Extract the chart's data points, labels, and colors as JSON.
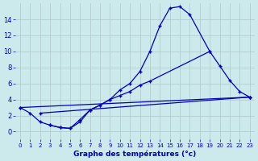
{
  "xlabel": "Graphe des températures (°c)",
  "bg_color": "#cce9eb",
  "grid_color": "#b0c8ca",
  "line_color": "#0000bb",
  "curve1_x": [
    3,
    4,
    5,
    6,
    7,
    8,
    9,
    10,
    11,
    12,
    13,
    14,
    15,
    16,
    17,
    19
  ],
  "curve1_y": [
    0.8,
    0.5,
    0.4,
    1.2,
    2.7,
    3.3,
    4.0,
    5.2,
    6.0,
    7.5,
    10.0,
    13.2,
    15.4,
    15.6,
    14.6,
    10.0
  ],
  "curve2_x": [
    0,
    1,
    2,
    3,
    4,
    5,
    6,
    7,
    8,
    9,
    10,
    11,
    12,
    13,
    19,
    20,
    21,
    22,
    23
  ],
  "curve2_y": [
    3.0,
    2.3,
    1.2,
    0.8,
    0.5,
    0.4,
    1.5,
    2.7,
    3.3,
    4.0,
    4.5,
    5.0,
    5.8,
    6.3,
    10.0,
    8.2,
    6.4,
    5.0,
    4.3
  ],
  "curve3_x": [
    0,
    23
  ],
  "curve3_y": [
    3.0,
    4.3
  ],
  "curve4_x": [
    2,
    23
  ],
  "curve4_y": [
    2.3,
    4.3
  ],
  "xlim": [
    -0.5,
    23.5
  ],
  "ylim": [
    -1.0,
    16.0
  ],
  "yticks": [
    0,
    2,
    4,
    6,
    8,
    10,
    12,
    14
  ],
  "xticks": [
    0,
    1,
    2,
    3,
    4,
    5,
    6,
    7,
    8,
    9,
    10,
    11,
    12,
    13,
    14,
    15,
    16,
    17,
    18,
    19,
    20,
    21,
    22,
    23
  ],
  "xlabel_fontsize": 6.5,
  "tick_fontsize_x": 5,
  "tick_fontsize_y": 6
}
